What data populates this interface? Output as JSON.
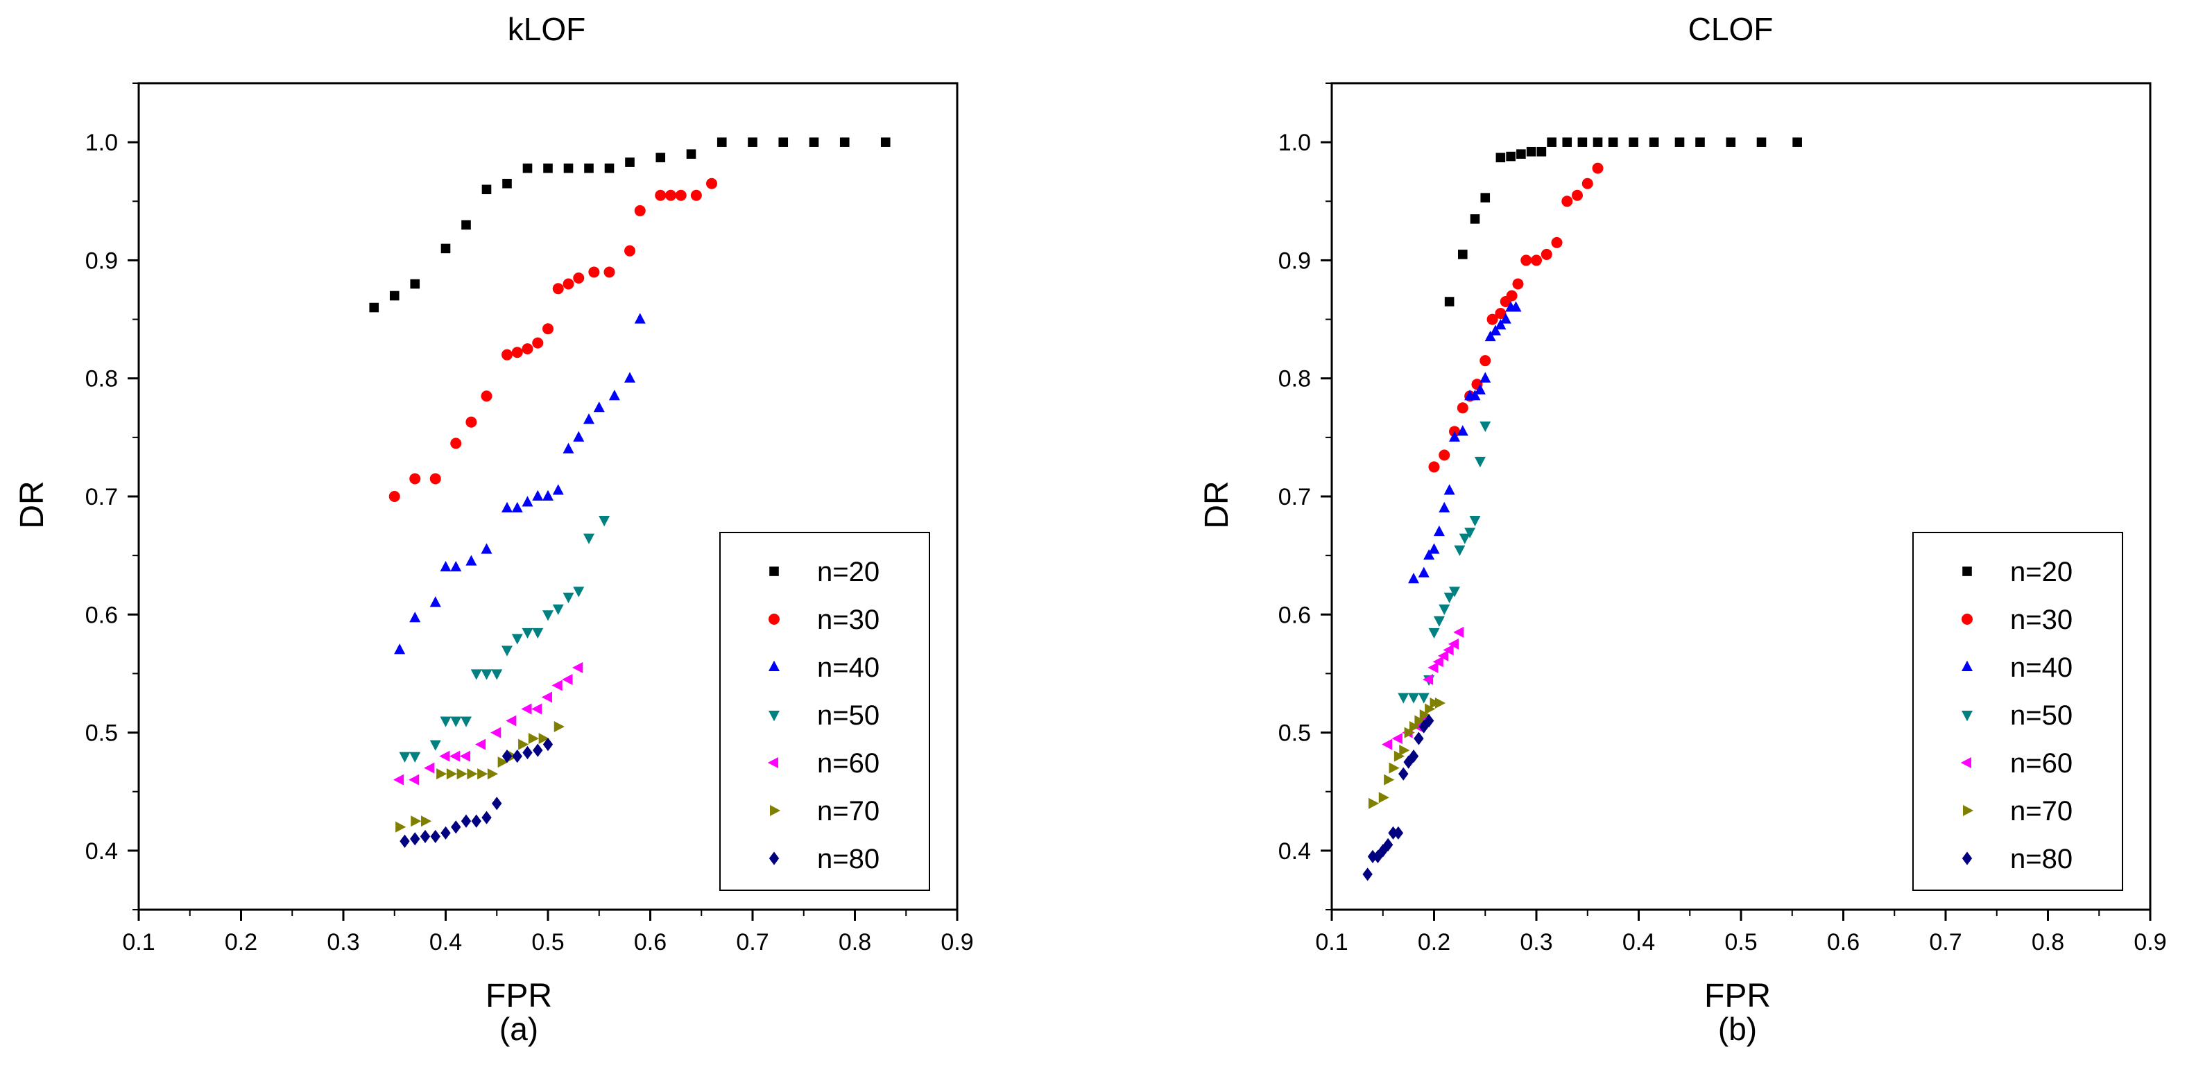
{
  "chart_data": [
    {
      "type": "scatter",
      "title": "kLOF",
      "xlabel": "FPR",
      "ylabel": "DR",
      "caption": "(a)",
      "xlim": [
        0.1,
        0.9
      ],
      "ylim": [
        0.35,
        1.05
      ],
      "xticks": [
        "0.1",
        "0.2",
        "0.3",
        "0.4",
        "0.5",
        "0.6",
        "0.7",
        "0.8",
        "0.9"
      ],
      "yticks": [
        "0.4",
        "0.5",
        "0.6",
        "0.7",
        "0.8",
        "0.9",
        "1.0"
      ],
      "legend_position": "bottom-right",
      "series": [
        {
          "name": "n=20",
          "color": "#000000",
          "marker": "square",
          "x": [
            0.33,
            0.35,
            0.37,
            0.4,
            0.42,
            0.44,
            0.46,
            0.48,
            0.5,
            0.52,
            0.54,
            0.56,
            0.58,
            0.61,
            0.64,
            0.67,
            0.7,
            0.73,
            0.76,
            0.79,
            0.83
          ],
          "y": [
            0.86,
            0.87,
            0.88,
            0.91,
            0.93,
            0.96,
            0.965,
            0.978,
            0.978,
            0.978,
            0.978,
            0.978,
            0.983,
            0.987,
            0.99,
            1.0,
            1.0,
            1.0,
            1.0,
            1.0,
            1.0
          ]
        },
        {
          "name": "n=30",
          "color": "#ff0000",
          "marker": "circle",
          "x": [
            0.35,
            0.37,
            0.39,
            0.41,
            0.425,
            0.44,
            0.46,
            0.47,
            0.48,
            0.49,
            0.5,
            0.51,
            0.52,
            0.53,
            0.545,
            0.56,
            0.58,
            0.59,
            0.61,
            0.62,
            0.63,
            0.645,
            0.66
          ],
          "y": [
            0.7,
            0.715,
            0.715,
            0.745,
            0.763,
            0.785,
            0.82,
            0.822,
            0.825,
            0.83,
            0.842,
            0.876,
            0.88,
            0.885,
            0.89,
            0.89,
            0.908,
            0.942,
            0.955,
            0.955,
            0.955,
            0.955,
            0.965
          ]
        },
        {
          "name": "n=40",
          "color": "#0000ff",
          "marker": "triangle-up",
          "x": [
            0.355,
            0.37,
            0.39,
            0.4,
            0.41,
            0.425,
            0.44,
            0.46,
            0.47,
            0.48,
            0.49,
            0.5,
            0.51,
            0.52,
            0.53,
            0.54,
            0.55,
            0.565,
            0.58,
            0.59
          ],
          "y": [
            0.57,
            0.597,
            0.61,
            0.64,
            0.64,
            0.645,
            0.655,
            0.69,
            0.69,
            0.695,
            0.7,
            0.7,
            0.705,
            0.74,
            0.75,
            0.765,
            0.775,
            0.785,
            0.8,
            0.85
          ]
        },
        {
          "name": "n=50",
          "color": "#008080",
          "marker": "triangle-down",
          "x": [
            0.36,
            0.37,
            0.39,
            0.4,
            0.41,
            0.42,
            0.43,
            0.44,
            0.45,
            0.46,
            0.47,
            0.48,
            0.49,
            0.5,
            0.51,
            0.52,
            0.53,
            0.54,
            0.555
          ],
          "y": [
            0.48,
            0.48,
            0.49,
            0.51,
            0.51,
            0.51,
            0.55,
            0.55,
            0.55,
            0.57,
            0.58,
            0.585,
            0.585,
            0.6,
            0.605,
            0.615,
            0.62,
            0.665,
            0.68
          ]
        },
        {
          "name": "n=60",
          "color": "#ff00ff",
          "marker": "triangle-left",
          "x": [
            0.355,
            0.37,
            0.385,
            0.4,
            0.41,
            0.42,
            0.435,
            0.45,
            0.465,
            0.48,
            0.49,
            0.5,
            0.51,
            0.52,
            0.53
          ],
          "y": [
            0.46,
            0.46,
            0.47,
            0.48,
            0.48,
            0.48,
            0.49,
            0.5,
            0.51,
            0.52,
            0.52,
            0.53,
            0.54,
            0.545,
            0.555
          ]
        },
        {
          "name": "n=70",
          "color": "#808000",
          "marker": "triangle-right",
          "x": [
            0.355,
            0.37,
            0.38,
            0.395,
            0.405,
            0.415,
            0.425,
            0.435,
            0.445,
            0.455,
            0.465,
            0.475,
            0.485,
            0.495,
            0.51
          ],
          "y": [
            0.42,
            0.425,
            0.425,
            0.465,
            0.465,
            0.465,
            0.465,
            0.465,
            0.465,
            0.475,
            0.48,
            0.49,
            0.495,
            0.495,
            0.505
          ]
        },
        {
          "name": "n=80",
          "color": "#000080",
          "marker": "diamond",
          "x": [
            0.36,
            0.37,
            0.38,
            0.39,
            0.4,
            0.41,
            0.42,
            0.43,
            0.44,
            0.45,
            0.46,
            0.47,
            0.48,
            0.49,
            0.5
          ],
          "y": [
            0.408,
            0.41,
            0.412,
            0.412,
            0.415,
            0.42,
            0.425,
            0.425,
            0.428,
            0.44,
            0.48,
            0.48,
            0.483,
            0.485,
            0.49
          ]
        }
      ]
    },
    {
      "type": "scatter",
      "title": "CLOF",
      "xlabel": "FPR",
      "ylabel": "DR",
      "caption": "(b)",
      "xlim": [
        0.1,
        0.9
      ],
      "ylim": [
        0.35,
        1.05
      ],
      "xticks": [
        "0.1",
        "0.2",
        "0.3",
        "0.4",
        "0.5",
        "0.6",
        "0.7",
        "0.8",
        "0.9"
      ],
      "yticks": [
        "0.4",
        "0.5",
        "0.6",
        "0.7",
        "0.8",
        "0.9",
        "1.0"
      ],
      "legend_position": "bottom-right",
      "series": [
        {
          "name": "n=20",
          "color": "#000000",
          "marker": "square",
          "x": [
            0.215,
            0.228,
            0.24,
            0.25,
            0.265,
            0.275,
            0.285,
            0.295,
            0.305,
            0.315,
            0.33,
            0.345,
            0.36,
            0.375,
            0.395,
            0.415,
            0.44,
            0.46,
            0.49,
            0.52,
            0.555
          ],
          "y": [
            0.865,
            0.905,
            0.935,
            0.953,
            0.987,
            0.988,
            0.99,
            0.992,
            0.992,
            1.0,
            1.0,
            1.0,
            1.0,
            1.0,
            1.0,
            1.0,
            1.0,
            1.0,
            1.0,
            1.0,
            1.0
          ]
        },
        {
          "name": "n=30",
          "color": "#ff0000",
          "marker": "circle",
          "x": [
            0.2,
            0.21,
            0.22,
            0.228,
            0.235,
            0.242,
            0.25,
            0.257,
            0.265,
            0.27,
            0.276,
            0.282,
            0.29,
            0.3,
            0.31,
            0.32,
            0.33,
            0.34,
            0.35,
            0.36
          ],
          "y": [
            0.725,
            0.735,
            0.755,
            0.775,
            0.785,
            0.795,
            0.815,
            0.85,
            0.855,
            0.865,
            0.87,
            0.88,
            0.9,
            0.9,
            0.905,
            0.915,
            0.95,
            0.955,
            0.965,
            0.978
          ]
        },
        {
          "name": "n=40",
          "color": "#0000ff",
          "marker": "triangle-up",
          "x": [
            0.18,
            0.19,
            0.195,
            0.2,
            0.205,
            0.21,
            0.215,
            0.22,
            0.228,
            0.235,
            0.24,
            0.245,
            0.25,
            0.255,
            0.26,
            0.265,
            0.27,
            0.275,
            0.28
          ],
          "y": [
            0.63,
            0.635,
            0.65,
            0.655,
            0.67,
            0.69,
            0.705,
            0.75,
            0.755,
            0.785,
            0.785,
            0.79,
            0.8,
            0.835,
            0.84,
            0.845,
            0.85,
            0.86,
            0.86
          ]
        },
        {
          "name": "n=50",
          "color": "#008080",
          "marker": "triangle-down",
          "x": [
            0.17,
            0.18,
            0.19,
            0.195,
            0.2,
            0.205,
            0.21,
            0.215,
            0.22,
            0.225,
            0.23,
            0.235,
            0.24,
            0.245,
            0.25
          ],
          "y": [
            0.53,
            0.53,
            0.53,
            0.545,
            0.585,
            0.595,
            0.605,
            0.615,
            0.62,
            0.655,
            0.665,
            0.67,
            0.68,
            0.73,
            0.76
          ]
        },
        {
          "name": "n=60",
          "color": "#ff00ff",
          "marker": "triangle-left",
          "x": [
            0.155,
            0.165,
            0.175,
            0.185,
            0.19,
            0.195,
            0.2,
            0.205,
            0.21,
            0.215,
            0.22,
            0.225
          ],
          "y": [
            0.49,
            0.495,
            0.5,
            0.505,
            0.51,
            0.545,
            0.555,
            0.56,
            0.565,
            0.57,
            0.575,
            0.585
          ]
        },
        {
          "name": "n=70",
          "color": "#808000",
          "marker": "triangle-right",
          "x": [
            0.14,
            0.15,
            0.155,
            0.16,
            0.165,
            0.17,
            0.175,
            0.18,
            0.185,
            0.19,
            0.195,
            0.2,
            0.205
          ],
          "y": [
            0.44,
            0.445,
            0.46,
            0.47,
            0.48,
            0.485,
            0.5,
            0.505,
            0.51,
            0.515,
            0.52,
            0.525,
            0.525
          ]
        },
        {
          "name": "n=80",
          "color": "#000080",
          "marker": "diamond",
          "x": [
            0.135,
            0.14,
            0.145,
            0.15,
            0.155,
            0.16,
            0.165,
            0.17,
            0.175,
            0.18,
            0.185,
            0.19,
            0.195
          ],
          "y": [
            0.38,
            0.395,
            0.395,
            0.4,
            0.405,
            0.415,
            0.415,
            0.465,
            0.475,
            0.48,
            0.495,
            0.505,
            0.51
          ]
        }
      ]
    }
  ]
}
